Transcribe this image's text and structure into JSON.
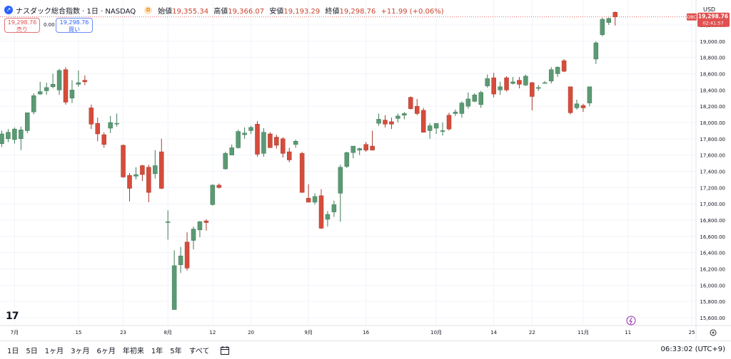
{
  "header": {
    "symbol_title": "ナスダック総合指数 · 1日 · NASDAQ",
    "badge": "D",
    "open_label": "始値",
    "open": "19,355.34",
    "high_label": "高値",
    "high": "19,366.07",
    "low_label": "安値",
    "low": "19,193.29",
    "close_label": "終値",
    "close": "19,298.76",
    "change": "+11.99 (+0.06%)",
    "currency": "USD"
  },
  "trade": {
    "sell_price": "19,298.76",
    "sell_label": "売り",
    "spread": "0.00",
    "buy_price": "19,298.76",
    "buy_label": "買い"
  },
  "price_tag": {
    "side_label": "DBC",
    "price": "19,298.76",
    "countdown": "02:41:57"
  },
  "bottom": {
    "timeframes": [
      "1日",
      "5日",
      "1ヶ月",
      "3ヶ月",
      "6ヶ月",
      "年初来",
      "1年",
      "5年",
      "すべて"
    ],
    "clock": "06:33:02 (UTC+9)"
  },
  "colors": {
    "up": "#5b9a74",
    "down": "#d64c3b",
    "grid": "#f0f3fa",
    "price_line": "#e05050"
  },
  "chart_data": {
    "type": "candlestick",
    "title": "ナスダック総合指数 · 1日 · NASDAQ",
    "ylim": [
      15500,
      19700
    ],
    "yticks": [
      15600,
      15800,
      16000,
      16200,
      16400,
      16600,
      16800,
      17000,
      17200,
      17400,
      17600,
      17800,
      18000,
      18200,
      18400,
      18600,
      18800,
      19000,
      19200
    ],
    "ytick_labels": [
      "15,600.00",
      "15,800.00",
      "16,000.00",
      "16,200.00",
      "16,400.00",
      "16,600.00",
      "16,800.00",
      "17,000.00",
      "17,200.00",
      "17,400.00",
      "17,600.00",
      "17,800.00",
      "18,000.00",
      "18,200.00",
      "18,400.00",
      "18,600.00",
      "18,800.00",
      "19,000.00",
      "19,200.00"
    ],
    "xtick_labels": [
      {
        "label": "7月",
        "index": 2
      },
      {
        "label": "15",
        "index": 12
      },
      {
        "label": "23",
        "index": 19
      },
      {
        "label": "8月",
        "index": 26
      },
      {
        "label": "12",
        "index": 33
      },
      {
        "label": "20",
        "index": 39
      },
      {
        "label": "9月",
        "index": 48
      },
      {
        "label": "16",
        "index": 57
      },
      {
        "label": "10月",
        "index": 68
      },
      {
        "label": "14",
        "index": 77
      },
      {
        "label": "22",
        "index": 83
      },
      {
        "label": "11月",
        "index": 91
      },
      {
        "label": "11",
        "index": 98
      },
      {
        "label": "25",
        "index": 108
      }
    ],
    "candles": [
      {
        "o": 17740,
        "h": 17900,
        "l": 17700,
        "c": 17860
      },
      {
        "o": 17800,
        "h": 17920,
        "l": 17760,
        "c": 17880
      },
      {
        "o": 17790,
        "h": 17940,
        "l": 17740,
        "c": 17920
      },
      {
        "o": 17800,
        "h": 17950,
        "l": 17660,
        "c": 17910
      },
      {
        "o": 17900,
        "h": 18120,
        "l": 17870,
        "c": 18120
      },
      {
        "o": 18130,
        "h": 18360,
        "l": 18100,
        "c": 18330
      },
      {
        "o": 18350,
        "h": 18500,
        "l": 18340,
        "c": 18380
      },
      {
        "o": 18390,
        "h": 18490,
        "l": 18340,
        "c": 18430
      },
      {
        "o": 18440,
        "h": 18600,
        "l": 18420,
        "c": 18470
      },
      {
        "o": 18400,
        "h": 18660,
        "l": 18340,
        "c": 18640
      },
      {
        "o": 18650,
        "h": 18680,
        "l": 18220,
        "c": 18250
      },
      {
        "o": 18300,
        "h": 18520,
        "l": 18240,
        "c": 18400
      },
      {
        "o": 18470,
        "h": 18640,
        "l": 18440,
        "c": 18490
      },
      {
        "o": 18520,
        "h": 18580,
        "l": 18460,
        "c": 18500
      },
      {
        "o": 18180,
        "h": 18220,
        "l": 17920,
        "c": 17980
      },
      {
        "o": 17990,
        "h": 18060,
        "l": 17770,
        "c": 17860
      },
      {
        "o": 17850,
        "h": 17880,
        "l": 17690,
        "c": 17730
      },
      {
        "o": 17930,
        "h": 18080,
        "l": 17870,
        "c": 18000
      },
      {
        "o": 17990,
        "h": 18110,
        "l": 17950,
        "c": 17990
      },
      {
        "o": 17720,
        "h": 17730,
        "l": 17320,
        "c": 17330
      },
      {
        "o": 17350,
        "h": 17380,
        "l": 17030,
        "c": 17190
      },
      {
        "o": 17340,
        "h": 17450,
        "l": 17300,
        "c": 17360
      },
      {
        "o": 17470,
        "h": 17480,
        "l": 17280,
        "c": 17360
      },
      {
        "o": 17450,
        "h": 17480,
        "l": 17020,
        "c": 17140
      },
      {
        "o": 17370,
        "h": 17660,
        "l": 17310,
        "c": 17470
      },
      {
        "o": 17640,
        "h": 17800,
        "l": 17180,
        "c": 17190
      },
      {
        "o": 16780,
        "h": 16920,
        "l": 16560,
        "c": 16780
      },
      {
        "o": 15700,
        "h": 16430,
        "l": 15700,
        "c": 16240
      },
      {
        "o": 16250,
        "h": 16470,
        "l": 16150,
        "c": 16360
      },
      {
        "o": 16530,
        "h": 16650,
        "l": 16180,
        "c": 16210
      },
      {
        "o": 16550,
        "h": 16720,
        "l": 16440,
        "c": 16690
      },
      {
        "o": 16680,
        "h": 16790,
        "l": 16590,
        "c": 16780
      },
      {
        "o": 16790,
        "h": 16810,
        "l": 16670,
        "c": 16770
      },
      {
        "o": 16990,
        "h": 17240,
        "l": 16980,
        "c": 17230
      },
      {
        "o": 17230,
        "h": 17250,
        "l": 17190,
        "c": 17200
      },
      {
        "o": 17430,
        "h": 17640,
        "l": 17420,
        "c": 17620
      },
      {
        "o": 17600,
        "h": 17730,
        "l": 17600,
        "c": 17690
      },
      {
        "o": 17690,
        "h": 17910,
        "l": 17680,
        "c": 17890
      },
      {
        "o": 17850,
        "h": 17940,
        "l": 17800,
        "c": 17870
      },
      {
        "o": 17900,
        "h": 17960,
        "l": 17860,
        "c": 17940
      },
      {
        "o": 17980,
        "h": 18020,
        "l": 17580,
        "c": 17610
      },
      {
        "o": 17620,
        "h": 17930,
        "l": 17580,
        "c": 17880
      },
      {
        "o": 17860,
        "h": 17880,
        "l": 17700,
        "c": 17690
      },
      {
        "o": 17820,
        "h": 17850,
        "l": 17680,
        "c": 17720
      },
      {
        "o": 17800,
        "h": 17820,
        "l": 17570,
        "c": 17620
      },
      {
        "o": 17640,
        "h": 17690,
        "l": 17510,
        "c": 17540
      },
      {
        "o": 17730,
        "h": 17790,
        "l": 17690,
        "c": 17770
      },
      {
        "o": 17620,
        "h": 17640,
        "l": 17140,
        "c": 17140
      },
      {
        "o": 17070,
        "h": 17240,
        "l": 17030,
        "c": 17020
      },
      {
        "o": 17020,
        "h": 17130,
        "l": 16990,
        "c": 17090
      },
      {
        "o": 17100,
        "h": 17180,
        "l": 16690,
        "c": 16700
      },
      {
        "o": 16810,
        "h": 16910,
        "l": 16720,
        "c": 16870
      },
      {
        "o": 16900,
        "h": 17040,
        "l": 16840,
        "c": 16990
      },
      {
        "o": 17130,
        "h": 17480,
        "l": 16780,
        "c": 17450
      },
      {
        "o": 17460,
        "h": 17640,
        "l": 17440,
        "c": 17630
      },
      {
        "o": 17630,
        "h": 17710,
        "l": 17560,
        "c": 17710
      },
      {
        "o": 17660,
        "h": 17690,
        "l": 17600,
        "c": 17680
      },
      {
        "o": 17730,
        "h": 17760,
        "l": 17640,
        "c": 17660
      },
      {
        "o": 17710,
        "h": 17900,
        "l": 17660,
        "c": 17660
      },
      {
        "o": 17990,
        "h": 18110,
        "l": 17960,
        "c": 18040
      },
      {
        "o": 18030,
        "h": 18090,
        "l": 17940,
        "c": 17980
      },
      {
        "o": 18010,
        "h": 18060,
        "l": 17920,
        "c": 17980
      },
      {
        "o": 18050,
        "h": 18110,
        "l": 18000,
        "c": 18080
      },
      {
        "o": 18090,
        "h": 18130,
        "l": 18040,
        "c": 18110
      },
      {
        "o": 18310,
        "h": 18320,
        "l": 18160,
        "c": 18170
      },
      {
        "o": 18200,
        "h": 18290,
        "l": 18090,
        "c": 18110
      },
      {
        "o": 18150,
        "h": 18180,
        "l": 17880,
        "c": 17880
      },
      {
        "o": 17900,
        "h": 17990,
        "l": 17800,
        "c": 17960
      },
      {
        "o": 17930,
        "h": 17990,
        "l": 17860,
        "c": 17990
      },
      {
        "o": 17890,
        "h": 18000,
        "l": 17840,
        "c": 17900
      },
      {
        "o": 18090,
        "h": 18120,
        "l": 17900,
        "c": 17920
      },
      {
        "o": 18110,
        "h": 18160,
        "l": 18080,
        "c": 18130
      },
      {
        "o": 18110,
        "h": 18260,
        "l": 18060,
        "c": 18240
      },
      {
        "o": 18200,
        "h": 18370,
        "l": 18170,
        "c": 18290
      },
      {
        "o": 18260,
        "h": 18360,
        "l": 18250,
        "c": 18340
      },
      {
        "o": 18220,
        "h": 18390,
        "l": 18180,
        "c": 18370
      },
      {
        "o": 18450,
        "h": 18590,
        "l": 18430,
        "c": 18540
      },
      {
        "o": 18550,
        "h": 18610,
        "l": 18310,
        "c": 18350
      },
      {
        "o": 18400,
        "h": 18500,
        "l": 18340,
        "c": 18440
      },
      {
        "o": 18550,
        "h": 18570,
        "l": 18380,
        "c": 18400
      },
      {
        "o": 18480,
        "h": 18560,
        "l": 18470,
        "c": 18500
      },
      {
        "o": 18520,
        "h": 18560,
        "l": 18420,
        "c": 18470
      },
      {
        "o": 18460,
        "h": 18590,
        "l": 18450,
        "c": 18570
      },
      {
        "o": 18490,
        "h": 18500,
        "l": 18150,
        "c": 18320
      },
      {
        "o": 18420,
        "h": 18460,
        "l": 18390,
        "c": 18430
      },
      {
        "o": 18490,
        "h": 18510,
        "l": 18480,
        "c": 18490
      },
      {
        "o": 18510,
        "h": 18680,
        "l": 18480,
        "c": 18650
      },
      {
        "o": 18600,
        "h": 18690,
        "l": 18560,
        "c": 18680
      },
      {
        "o": 18760,
        "h": 18780,
        "l": 18620,
        "c": 18630
      },
      {
        "o": 18440,
        "h": 18440,
        "l": 18100,
        "c": 18120
      },
      {
        "o": 18180,
        "h": 18280,
        "l": 18160,
        "c": 18230
      },
      {
        "o": 18210,
        "h": 18230,
        "l": 18130,
        "c": 18180
      },
      {
        "o": 18240,
        "h": 18440,
        "l": 18200,
        "c": 18440
      },
      {
        "o": 18780,
        "h": 19000,
        "l": 18720,
        "c": 18980
      },
      {
        "o": 19080,
        "h": 19290,
        "l": 19060,
        "c": 19270
      },
      {
        "o": 19230,
        "h": 19290,
        "l": 19200,
        "c": 19280
      },
      {
        "o": 19355,
        "h": 19366,
        "l": 19193,
        "c": 19299
      }
    ]
  }
}
